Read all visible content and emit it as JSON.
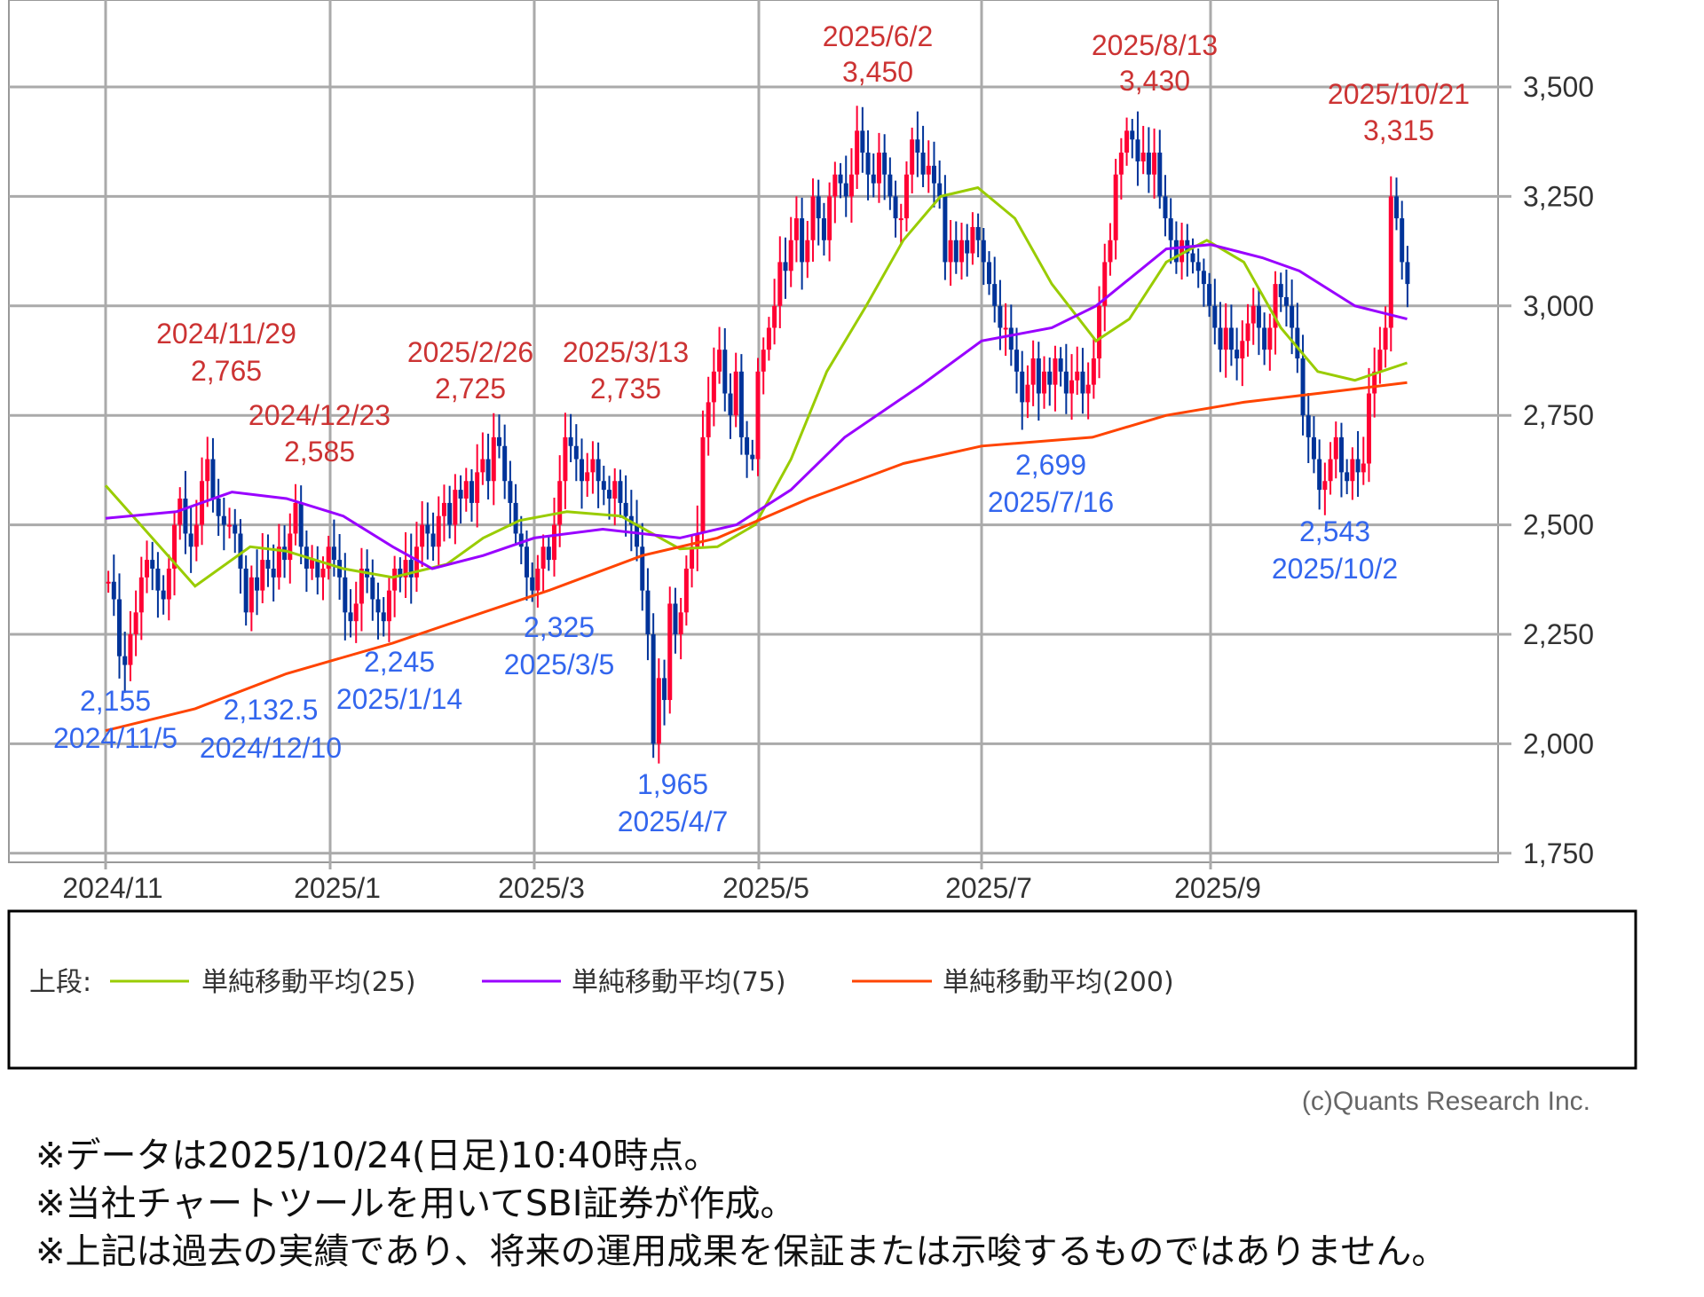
{
  "chart_data": {
    "type": "candlestick",
    "ylim": [
      1750,
      3500
    ],
    "yticks": [
      "3,500",
      "3,250",
      "3,000",
      "2,750",
      "2,500",
      "2,250",
      "2,000",
      "1,750"
    ],
    "ytick_values": [
      3500,
      3250,
      3000,
      2750,
      2500,
      2250,
      2000,
      1750
    ],
    "xticks": [
      "2024/11",
      "2025/1",
      "2025/3",
      "2025/5",
      "2025/7",
      "2025/9"
    ],
    "grid": true,
    "colors": {
      "up": "#ff0033",
      "down": "#003399",
      "ma25": "#99cc00",
      "ma75": "#9900ff",
      "ma200": "#ff4400",
      "high_label": "#cc3333",
      "low_label": "#3366ee"
    },
    "daily_closes_by_month": [
      {
        "month": "2024/11",
        "closes": [
          2370,
          2330,
          2200,
          2180,
          2250,
          2300,
          2380,
          2420,
          2400,
          2350,
          2330,
          2400,
          2500,
          2560,
          2480,
          2450,
          2500,
          2600,
          2650
        ]
      },
      {
        "month": "2024/12",
        "closes": [
          2560,
          2520,
          2500,
          2500,
          2480,
          2400,
          2300,
          2380,
          2350,
          2420,
          2400,
          2380,
          2450,
          2420,
          2480,
          2550,
          2450,
          2400,
          2420,
          2380
        ]
      },
      {
        "month": "2025/1",
        "closes": [
          2400,
          2450,
          2420,
          2380,
          2300,
          2280,
          2320,
          2400,
          2380,
          2330,
          2300,
          2280,
          2350,
          2400,
          2380,
          2420,
          2380,
          2450,
          2500
        ]
      },
      {
        "month": "2025/2",
        "closes": [
          2480,
          2450,
          2520,
          2550,
          2500,
          2580,
          2560,
          2600,
          2550,
          2620,
          2650,
          2600,
          2700,
          2680,
          2600,
          2550,
          2480,
          2450
        ]
      },
      {
        "month": "2025/3",
        "closes": [
          2380,
          2350,
          2400,
          2450,
          2420,
          2500,
          2600,
          2700,
          2680,
          2650,
          2600,
          2620,
          2650,
          2600,
          2580,
          2560,
          2600,
          2550,
          2520,
          2500,
          2450
        ]
      },
      {
        "month": "2025/4",
        "closes": [
          2350,
          2250,
          2000,
          2150,
          2100,
          2320,
          2250,
          2300,
          2400,
          2450,
          2480,
          2700,
          2780,
          2850,
          2900,
          2800,
          2750,
          2850,
          2700,
          2660,
          2650
        ]
      },
      {
        "month": "2025/5",
        "closes": [
          2850,
          2900,
          2950,
          3000,
          3100,
          3080,
          3150,
          3200,
          3100,
          3150,
          3250,
          3200,
          3150,
          3250,
          3300,
          3280,
          3250,
          3300
        ]
      },
      {
        "month": "2025/6",
        "closes": [
          3400,
          3350,
          3300,
          3280,
          3350,
          3300,
          3250,
          3200,
          3200,
          3300,
          3380,
          3350,
          3300,
          3320,
          3280,
          3250,
          3100,
          3150,
          3100,
          3150,
          3120
        ]
      },
      {
        "month": "2025/7",
        "closes": [
          3180,
          3150,
          3100,
          3050,
          3000,
          2950,
          2950,
          2900,
          2850,
          2780,
          2820,
          2880,
          2800,
          2850,
          2820,
          2880,
          2850,
          2800,
          2830,
          2850,
          2800,
          2820
        ]
      },
      {
        "month": "2025/8",
        "closes": [
          2880,
          3000,
          3100,
          3150,
          3300,
          3350,
          3400,
          3380,
          3330,
          3350,
          3300,
          3350,
          3250,
          3200,
          3150,
          3100,
          3150,
          3120,
          3100,
          3080
        ]
      },
      {
        "month": "2025/9",
        "closes": [
          3050,
          3000,
          2950,
          2900,
          2950,
          2900,
          2880,
          2920,
          2960,
          3000,
          2950,
          2900,
          2950,
          3050,
          3020,
          3000,
          2950,
          2880,
          2750,
          2700
        ]
      },
      {
        "month": "2025/10",
        "closes": [
          2650,
          2580,
          2600,
          2650,
          2700,
          2620,
          2600,
          2650,
          2620,
          2640,
          2800,
          2850,
          2900,
          2950,
          3250,
          3200,
          3100,
          3050
        ]
      }
    ],
    "moving_averages": [
      {
        "name": "単純移動平均(25)",
        "key": "ma25",
        "points": [
          [
            "2024/11/1",
            2590
          ],
          [
            "2024/11/25",
            2360
          ],
          [
            "2024/12/10",
            2450
          ],
          [
            "2024/12/20",
            2440
          ],
          [
            "2025/1/5",
            2400
          ],
          [
            "2025/1/20",
            2380
          ],
          [
            "2025/2/5",
            2410
          ],
          [
            "2025/2/15",
            2470
          ],
          [
            "2025/2/25",
            2510
          ],
          [
            "2025/3/10",
            2530
          ],
          [
            "2025/3/25",
            2520
          ],
          [
            "2025/4/10",
            2445
          ],
          [
            "2025/4/20",
            2450
          ],
          [
            "2025/4/30",
            2500
          ],
          [
            "2025/5/10",
            2650
          ],
          [
            "2025/5/20",
            2850
          ],
          [
            "2025/5/31",
            3000
          ],
          [
            "2025/6/10",
            3150
          ],
          [
            "2025/6/20",
            3250
          ],
          [
            "2025/6/30",
            3270
          ],
          [
            "2025/7/10",
            3200
          ],
          [
            "2025/7/20",
            3050
          ],
          [
            "2025/8/1",
            2920
          ],
          [
            "2025/8/10",
            2970
          ],
          [
            "2025/8/20",
            3100
          ],
          [
            "2025/8/31",
            3150
          ],
          [
            "2025/9/10",
            3100
          ],
          [
            "2025/9/20",
            2950
          ],
          [
            "2025/9/30",
            2850
          ],
          [
            "2025/10/10",
            2830
          ],
          [
            "2025/10/24",
            2870
          ]
        ]
      },
      {
        "name": "単純移動平均(75)",
        "key": "ma75",
        "points": [
          [
            "2024/11/1",
            2515
          ],
          [
            "2024/11/20",
            2530
          ],
          [
            "2024/12/5",
            2575
          ],
          [
            "2024/12/20",
            2560
          ],
          [
            "2025/1/5",
            2520
          ],
          [
            "2025/1/20",
            2450
          ],
          [
            "2025/2/1",
            2400
          ],
          [
            "2025/2/15",
            2430
          ],
          [
            "2025/3/1",
            2470
          ],
          [
            "2025/3/20",
            2490
          ],
          [
            "2025/4/10",
            2470
          ],
          [
            "2025/4/25",
            2500
          ],
          [
            "2025/5/10",
            2580
          ],
          [
            "2025/5/25",
            2700
          ],
          [
            "2025/6/15",
            2820
          ],
          [
            "2025/7/1",
            2920
          ],
          [
            "2025/7/20",
            2950
          ],
          [
            "2025/8/1",
            3000
          ],
          [
            "2025/8/20",
            3130
          ],
          [
            "2025/9/1",
            3140
          ],
          [
            "2025/9/15",
            3110
          ],
          [
            "2025/9/25",
            3080
          ],
          [
            "2025/10/10",
            3000
          ],
          [
            "2025/10/24",
            2970
          ]
        ]
      },
      {
        "name": "単純移動平均(200)",
        "key": "ma200",
        "points": [
          [
            "2024/11/1",
            2030
          ],
          [
            "2024/11/25",
            2080
          ],
          [
            "2024/12/20",
            2160
          ],
          [
            "2025/1/20",
            2230
          ],
          [
            "2025/2/15",
            2300
          ],
          [
            "2025/3/5",
            2350
          ],
          [
            "2025/3/31",
            2430
          ],
          [
            "2025/4/20",
            2470
          ],
          [
            "2025/5/15",
            2560
          ],
          [
            "2025/6/10",
            2640
          ],
          [
            "2025/7/1",
            2680
          ],
          [
            "2025/7/31",
            2700
          ],
          [
            "2025/8/20",
            2750
          ],
          [
            "2025/9/10",
            2780
          ],
          [
            "2025/9/30",
            2800
          ],
          [
            "2025/10/24",
            2825
          ]
        ]
      }
    ],
    "annotations": [
      {
        "kind": "high",
        "date": "2025/6/2",
        "value": "3,450"
      },
      {
        "kind": "high",
        "date": "2025/8/13",
        "value": "3,430"
      },
      {
        "kind": "high",
        "date": "2025/10/21",
        "value": "3,315"
      },
      {
        "kind": "high",
        "date": "2024/11/29",
        "value": "2,765"
      },
      {
        "kind": "high",
        "date": "2024/12/23",
        "value": "2,585"
      },
      {
        "kind": "high",
        "date": "2025/2/26",
        "value": "2,725"
      },
      {
        "kind": "high",
        "date": "2025/3/13",
        "value": "2,735"
      },
      {
        "kind": "low",
        "date": "2024/11/5",
        "value": "2,155"
      },
      {
        "kind": "low",
        "date": "2024/12/10",
        "value": "2,132.5"
      },
      {
        "kind": "low",
        "date": "2025/1/14",
        "value": "2,245"
      },
      {
        "kind": "low",
        "date": "2025/3/5",
        "value": "2,325"
      },
      {
        "kind": "low",
        "date": "2025/4/7",
        "value": "1,965"
      },
      {
        "kind": "low",
        "date": "2025/7/16",
        "value": "2,699"
      },
      {
        "kind": "low",
        "date": "2025/10/2",
        "value": "2,543"
      }
    ],
    "legend": {
      "prefix": "上段:",
      "placement": "bottom",
      "items": [
        "単純移動平均(25)",
        "単純移動平均(75)",
        "単純移動平均(200)"
      ]
    }
  },
  "copyright": "(c)Quants Research Inc.",
  "notes": [
    "※データは2025/10/24(日足)10:40時点。",
    "※当社チャートツールを用いてSBI証券が作成。",
    "※上記は過去の実績であり、将来の運用成果を保証または示唆するものではありません。"
  ]
}
